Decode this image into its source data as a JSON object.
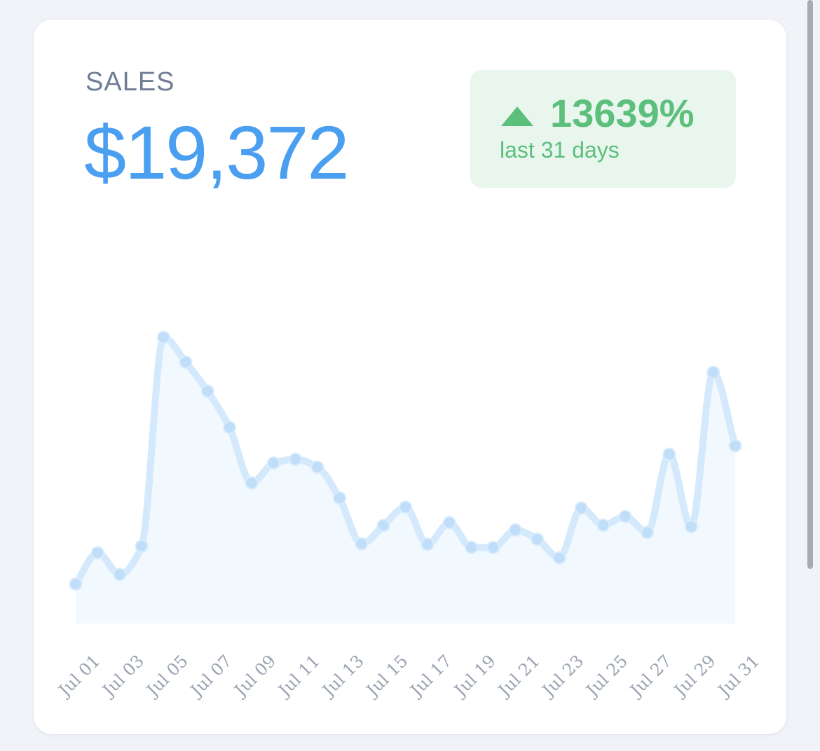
{
  "card": {
    "label": "SALES",
    "amount": "$19,372",
    "change": {
      "percent": "13639%",
      "period": "last 31 days",
      "direction_icon": "triangle-up-icon"
    }
  },
  "colors": {
    "amount": "#4a9ff0",
    "positive": "#5cbf7c",
    "line": "#d4e9fc",
    "area": "#f1f8fe",
    "point": "#c0def9",
    "tick": "#9aa3b2"
  },
  "chart_data": {
    "type": "area",
    "title": "",
    "xlabel": "",
    "ylabel": "",
    "x": [
      "Jul 01",
      "Jul 02",
      "Jul 03",
      "Jul 04",
      "Jul 05",
      "Jul 06",
      "Jul 07",
      "Jul 08",
      "Jul 09",
      "Jul 10",
      "Jul 11",
      "Jul 12",
      "Jul 13",
      "Jul 14",
      "Jul 15",
      "Jul 16",
      "Jul 17",
      "Jul 18",
      "Jul 19",
      "Jul 20",
      "Jul 21",
      "Jul 22",
      "Jul 23",
      "Jul 24",
      "Jul 25",
      "Jul 26",
      "Jul 27",
      "Jul 28",
      "Jul 29",
      "Jul 30",
      "Jul 31"
    ],
    "tick_labels": [
      "Jul 01",
      "Jul 03",
      "Jul 05",
      "Jul 07",
      "Jul 09",
      "Jul 11",
      "Jul 13",
      "Jul 15",
      "Jul 17",
      "Jul 19",
      "Jul 21",
      "Jul 23",
      "Jul 25",
      "Jul 27",
      "Jul 29",
      "Jul 31"
    ],
    "values": [
      140,
      251,
      174,
      275,
      1016,
      928,
      825,
      696,
      499,
      570,
      583,
      555,
      446,
      283,
      348,
      413,
      281,
      358,
      270,
      270,
      332,
      299,
      233,
      410,
      349,
      380,
      323,
      601,
      344,
      892,
      631
    ],
    "ylim": [
      0,
      1100
    ],
    "grid": false,
    "legend": "none"
  }
}
